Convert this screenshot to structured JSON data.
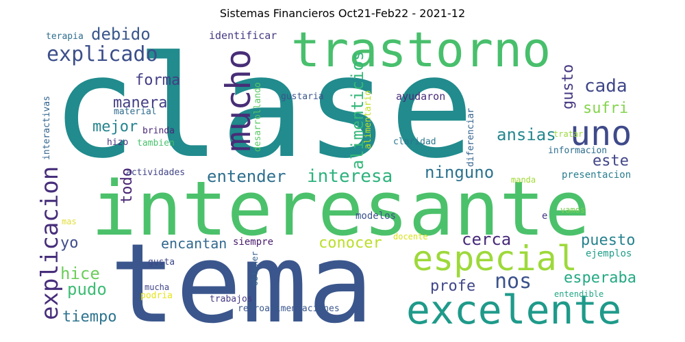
{
  "chart_data": {
    "type": "wordcloud",
    "title": "Sistemas Financieros Oct21-Feb22 - 2021-12",
    "background": "#ffffff",
    "words": [
      {
        "text": "clase",
        "color": "#218b8d"
      },
      {
        "text": "interesante",
        "color": "#4cc16b"
      },
      {
        "text": "tema",
        "color": "#3b568c"
      },
      {
        "text": "trastorno",
        "color": "#48bf6c"
      },
      {
        "text": "excelente",
        "color": "#1f9a8a"
      },
      {
        "text": "especial",
        "color": "#9dd93a"
      },
      {
        "text": "uno",
        "color": "#3e4a89"
      },
      {
        "text": "mucho",
        "color": "#482d77"
      },
      {
        "text": "explicacion",
        "color": "#472e7b"
      },
      {
        "text": "explicado",
        "color": "#3c4f8a"
      },
      {
        "text": "alimenticios",
        "color": "#35b779"
      },
      {
        "text": "debido",
        "color": "#39578c"
      },
      {
        "text": "cada",
        "color": "#3f4788"
      },
      {
        "text": "forma",
        "color": "#433e85"
      },
      {
        "text": "manera",
        "color": "#433e85"
      },
      {
        "text": "gusto",
        "color": "#453781"
      },
      {
        "text": "sufri",
        "color": "#84d44b"
      },
      {
        "text": "mejor",
        "color": "#25848e"
      },
      {
        "text": "ansias",
        "color": "#24878e"
      },
      {
        "text": "este",
        "color": "#414487"
      },
      {
        "text": "todo",
        "color": "#482475"
      },
      {
        "text": "entender",
        "color": "#2e6f8e"
      },
      {
        "text": "interesa",
        "color": "#2db27d"
      },
      {
        "text": "ninguno",
        "color": "#2c728e"
      },
      {
        "text": "conocer",
        "color": "#bade28"
      },
      {
        "text": "cerca",
        "color": "#472a7a"
      },
      {
        "text": "puesto",
        "color": "#26828e"
      },
      {
        "text": "encantan",
        "color": "#31688e"
      },
      {
        "text": "yo",
        "color": "#3e4c8a"
      },
      {
        "text": "hice",
        "color": "#6ccd5a"
      },
      {
        "text": "nos",
        "color": "#3b528b"
      },
      {
        "text": "profe",
        "color": "#404688"
      },
      {
        "text": "esperaba",
        "color": "#23a983"
      },
      {
        "text": "pudo",
        "color": "#3dbc74"
      },
      {
        "text": "tiempo",
        "color": "#2c738e"
      },
      {
        "text": "terapia",
        "color": "#2e6e8e"
      },
      {
        "text": "identificar",
        "color": "#443983"
      },
      {
        "text": "desarrollando",
        "color": "#5ac864"
      },
      {
        "text": "alimentario",
        "color": "#c2df23"
      },
      {
        "text": "interactivas",
        "color": "#33638d"
      },
      {
        "text": "material",
        "color": "#2f6c8e"
      },
      {
        "text": "gustaria",
        "color": "#3a548c"
      },
      {
        "text": "ayudaron",
        "color": "#472c7a"
      },
      {
        "text": "diferenciar",
        "color": "#33628d"
      },
      {
        "text": "tratar",
        "color": "#9bd93c"
      },
      {
        "text": "brinda",
        "color": "#482677"
      },
      {
        "text": "hizo",
        "color": "#46327e"
      },
      {
        "text": "tambien",
        "color": "#4ac16d"
      },
      {
        "text": "claridad",
        "color": "#2a778e"
      },
      {
        "text": "informacion",
        "color": "#2e6e8e"
      },
      {
        "text": "actividades",
        "color": "#414487"
      },
      {
        "text": "presentacion",
        "color": "#287d8e"
      },
      {
        "text": "manda",
        "color": "#a2da37"
      },
      {
        "text": "mas",
        "color": "#e1dd37"
      },
      {
        "text": "modelos",
        "color": "#3b528b"
      },
      {
        "text": "e",
        "color": "#443b84"
      },
      {
        "text": "vamos",
        "color": "#7ad151"
      },
      {
        "text": "siempre",
        "color": "#481a6c"
      },
      {
        "text": "docente",
        "color": "#d8e219"
      },
      {
        "text": "obtener",
        "color": "#34618d"
      },
      {
        "text": "ejemplos",
        "color": "#1f9e89"
      },
      {
        "text": "gusta",
        "color": "#3f4788"
      },
      {
        "text": "mucha",
        "color": "#404588"
      },
      {
        "text": "podria",
        "color": "#e5e419"
      },
      {
        "text": "trabajos",
        "color": "#453882"
      },
      {
        "text": "entendible",
        "color": "#22a785"
      },
      {
        "text": "retroalimentaciones",
        "color": "#39568c"
      }
    ]
  }
}
